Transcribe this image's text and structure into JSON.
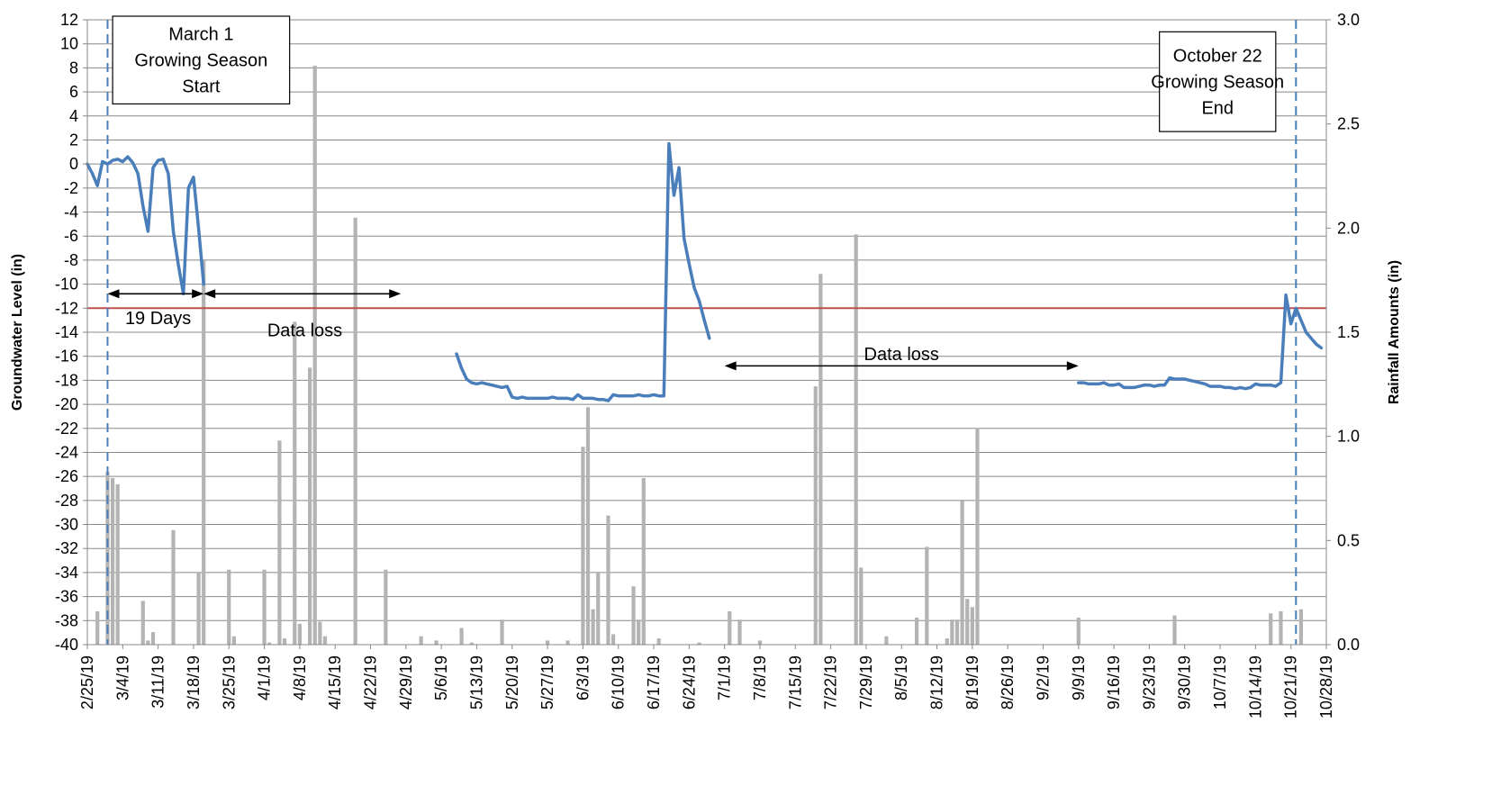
{
  "chart_data": {
    "type": "line",
    "title": "",
    "ylabel": "Groundwater Level (in)",
    "y2label": "Rainfall Amounts (in)",
    "ylim": [
      -40,
      12
    ],
    "y2lim": [
      0.0,
      3.0
    ],
    "xlim": [
      "2/25/19",
      "10/28/19"
    ],
    "yticks": [
      12,
      10,
      8,
      6,
      4,
      2,
      0,
      -2,
      -4,
      -6,
      -8,
      -10,
      -12,
      -14,
      -16,
      -18,
      -20,
      -22,
      -24,
      -26,
      -28,
      -30,
      -32,
      -34,
      -36,
      -38,
      -40
    ],
    "y2ticks": [
      "3.0",
      "2.5",
      "2.0",
      "1.5",
      "1.0",
      "0.5",
      "0.0"
    ],
    "x_ticks": [
      "2/25/19",
      "3/4/19",
      "3/11/19",
      "3/18/19",
      "3/25/19",
      "4/1/19",
      "4/8/19",
      "4/15/19",
      "4/22/19",
      "4/29/19",
      "5/6/19",
      "5/13/19",
      "5/20/19",
      "5/27/19",
      "6/3/19",
      "6/10/19",
      "6/17/19",
      "6/24/19",
      "7/1/19",
      "7/8/19",
      "7/15/19",
      "7/22/19",
      "7/29/19",
      "8/5/19",
      "8/12/19",
      "8/19/19",
      "8/26/19",
      "9/2/19",
      "9/9/19",
      "9/16/19",
      "9/23/19",
      "9/30/19",
      "10/7/19",
      "10/14/19",
      "10/21/19",
      "10/28/19"
    ],
    "grid": true,
    "colors": {
      "groundwater": "#4a7ebb",
      "rainfall": "#b3b3b3",
      "threshold": "#c0504d",
      "marker": "#4a7ebb",
      "grid": "#888888"
    },
    "threshold": -12,
    "groundwater_segments": [
      [
        [
          0,
          0
        ],
        [
          1,
          -0.8
        ],
        [
          2,
          -1.8
        ],
        [
          3,
          0.2
        ],
        [
          4,
          0
        ],
        [
          5,
          0.3
        ],
        [
          6,
          0.4
        ],
        [
          7,
          0.2
        ],
        [
          8,
          0.6
        ],
        [
          9,
          0.1
        ],
        [
          10,
          -0.8
        ],
        [
          11,
          -3.5
        ],
        [
          12,
          -5.6
        ],
        [
          13,
          -0.3
        ],
        [
          14,
          0.3
        ],
        [
          15,
          0.4
        ],
        [
          16,
          -0.8
        ],
        [
          17,
          -5.6
        ],
        [
          18,
          -8.4
        ],
        [
          19,
          -10.8
        ],
        [
          20,
          -2
        ],
        [
          21,
          -1.1
        ],
        [
          22,
          -5.4
        ],
        [
          23,
          -10
        ]
      ],
      [
        [
          73,
          -15.8
        ],
        [
          74,
          -17
        ],
        [
          75,
          -17.9
        ],
        [
          76,
          -18.2
        ],
        [
          77,
          -18.3
        ],
        [
          78,
          -18.2
        ],
        [
          79,
          -18.3
        ],
        [
          80,
          -18.4
        ],
        [
          81,
          -18.5
        ],
        [
          82,
          -18.6
        ],
        [
          83,
          -18.5
        ],
        [
          84,
          -19.4
        ],
        [
          85,
          -19.5
        ],
        [
          86,
          -19.4
        ],
        [
          87,
          -19.5
        ],
        [
          88,
          -19.5
        ],
        [
          89,
          -19.5
        ],
        [
          90,
          -19.5
        ],
        [
          91,
          -19.5
        ],
        [
          92,
          -19.4
        ],
        [
          93,
          -19.5
        ],
        [
          94,
          -19.5
        ],
        [
          95,
          -19.5
        ],
        [
          96,
          -19.6
        ],
        [
          97,
          -19.2
        ],
        [
          98,
          -19.5
        ],
        [
          99,
          -19.5
        ],
        [
          100,
          -19.5
        ],
        [
          101,
          -19.6
        ],
        [
          102,
          -19.6
        ],
        [
          103,
          -19.7
        ],
        [
          104,
          -19.2
        ],
        [
          105,
          -19.3
        ],
        [
          106,
          -19.3
        ],
        [
          107,
          -19.3
        ],
        [
          108,
          -19.3
        ],
        [
          109,
          -19.2
        ],
        [
          110,
          -19.3
        ],
        [
          111,
          -19.3
        ],
        [
          112,
          -19.2
        ],
        [
          113,
          -19.3
        ],
        [
          114,
          -19.3
        ],
        [
          115,
          1.7
        ],
        [
          116,
          -2.6
        ],
        [
          117,
          -0.3
        ],
        [
          118,
          -6.2
        ],
        [
          119,
          -8.3
        ],
        [
          120,
          -10.3
        ],
        [
          121,
          -11.4
        ],
        [
          122,
          -13
        ],
        [
          123,
          -14.5
        ]
      ],
      [
        [
          196,
          -18.2
        ],
        [
          197,
          -18.2
        ],
        [
          198,
          -18.3
        ],
        [
          199,
          -18.3
        ],
        [
          200,
          -18.3
        ],
        [
          201,
          -18.2
        ],
        [
          202,
          -18.4
        ],
        [
          203,
          -18.4
        ],
        [
          204,
          -18.3
        ],
        [
          205,
          -18.6
        ],
        [
          206,
          -18.6
        ],
        [
          207,
          -18.6
        ],
        [
          208,
          -18.5
        ],
        [
          209,
          -18.4
        ],
        [
          210,
          -18.4
        ],
        [
          211,
          -18.5
        ],
        [
          212,
          -18.4
        ],
        [
          213,
          -18.4
        ],
        [
          214,
          -17.8
        ],
        [
          215,
          -17.9
        ],
        [
          216,
          -17.9
        ],
        [
          217,
          -17.9
        ],
        [
          218,
          -18
        ],
        [
          219,
          -18.1
        ],
        [
          220,
          -18.2
        ],
        [
          221,
          -18.3
        ],
        [
          222,
          -18.5
        ],
        [
          223,
          -18.5
        ],
        [
          224,
          -18.5
        ],
        [
          225,
          -18.6
        ],
        [
          226,
          -18.6
        ],
        [
          227,
          -18.7
        ],
        [
          228,
          -18.6
        ],
        [
          229,
          -18.7
        ],
        [
          230,
          -18.6
        ],
        [
          231,
          -18.3
        ],
        [
          232,
          -18.4
        ],
        [
          233,
          -18.4
        ],
        [
          234,
          -18.4
        ],
        [
          235,
          -18.5
        ],
        [
          236,
          -18.2
        ],
        [
          237,
          -10.9
        ],
        [
          238,
          -13.3
        ],
        [
          239,
          -12
        ],
        [
          240,
          -13
        ],
        [
          241,
          -14
        ],
        [
          242,
          -14.5
        ],
        [
          243,
          -15
        ],
        [
          244,
          -15.3
        ]
      ]
    ],
    "rainfall_bars": [
      [
        2,
        0.16
      ],
      [
        4,
        0.83
      ],
      [
        5,
        0.8
      ],
      [
        6,
        0.77
      ],
      [
        11,
        0.21
      ],
      [
        12,
        0.02
      ],
      [
        13,
        0.06
      ],
      [
        17,
        0.55
      ],
      [
        22,
        0.35
      ],
      [
        23,
        1.85
      ],
      [
        28,
        0.36
      ],
      [
        29,
        0.04
      ],
      [
        35,
        0.36
      ],
      [
        36,
        0.01
      ],
      [
        38,
        0.98
      ],
      [
        39,
        0.03
      ],
      [
        41,
        1.55
      ],
      [
        42,
        0.1
      ],
      [
        44,
        1.33
      ],
      [
        45,
        2.78
      ],
      [
        46,
        0.11
      ],
      [
        47,
        0.04
      ],
      [
        53,
        2.05
      ],
      [
        59,
        0.36
      ],
      [
        66,
        0.04
      ],
      [
        69,
        0.02
      ],
      [
        74,
        0.08
      ],
      [
        76,
        0.01
      ],
      [
        82,
        0.12
      ],
      [
        91,
        0.02
      ],
      [
        95,
        0.02
      ],
      [
        98,
        0.95
      ],
      [
        99,
        1.14
      ],
      [
        100,
        0.17
      ],
      [
        101,
        0.35
      ],
      [
        103,
        0.62
      ],
      [
        104,
        0.05
      ],
      [
        108,
        0.28
      ],
      [
        109,
        0.12
      ],
      [
        110,
        0.8
      ],
      [
        113,
        0.03
      ],
      [
        121,
        0.01
      ],
      [
        127,
        0.16
      ],
      [
        129,
        0.12
      ],
      [
        133,
        0.02
      ],
      [
        144,
        1.24
      ],
      [
        145,
        1.78
      ],
      [
        152,
        1.97
      ],
      [
        153,
        0.37
      ],
      [
        158,
        0.04
      ],
      [
        164,
        0.13
      ],
      [
        166,
        0.47
      ],
      [
        170,
        0.03
      ],
      [
        171,
        0.12
      ],
      [
        172,
        0.12
      ],
      [
        173,
        0.69
      ],
      [
        174,
        0.22
      ],
      [
        175,
        0.18
      ],
      [
        176,
        1.04
      ],
      [
        196,
        0.13
      ],
      [
        215,
        0.14
      ],
      [
        234,
        0.15
      ],
      [
        236,
        0.16
      ],
      [
        240,
        0.17
      ]
    ],
    "markers": [
      {
        "x": 4
      },
      {
        "x": 239
      }
    ],
    "annotations": {
      "start_box": [
        "March 1",
        "Growing Season",
        "Start"
      ],
      "end_box": [
        "October 22",
        "Growing Season",
        "End"
      ],
      "arrow1_label": "19 Days",
      "arrow2_label": "Data loss",
      "arrow3_label": "Data loss"
    },
    "arrows": [
      {
        "x1": 4,
        "x2": 23,
        "y": -10.8
      },
      {
        "x1": 23,
        "x2": 62,
        "y": -10.8
      },
      {
        "x1": 126,
        "x2": 196,
        "y": -16.8
      }
    ],
    "label_positions": {
      "arrow1": {
        "x": 14,
        "y": -12.8
      },
      "arrow2": {
        "x": 43,
        "y": -13.8
      },
      "arrow3": {
        "x": 161,
        "y": -15.8
      }
    },
    "start_box_range": {
      "x1": 5,
      "x2": 40,
      "ytop": 12.3,
      "ybottom": 5
    },
    "end_box_range": {
      "x1": 212,
      "x2": 235,
      "ytop": 11,
      "ybottom": 2.7
    }
  }
}
